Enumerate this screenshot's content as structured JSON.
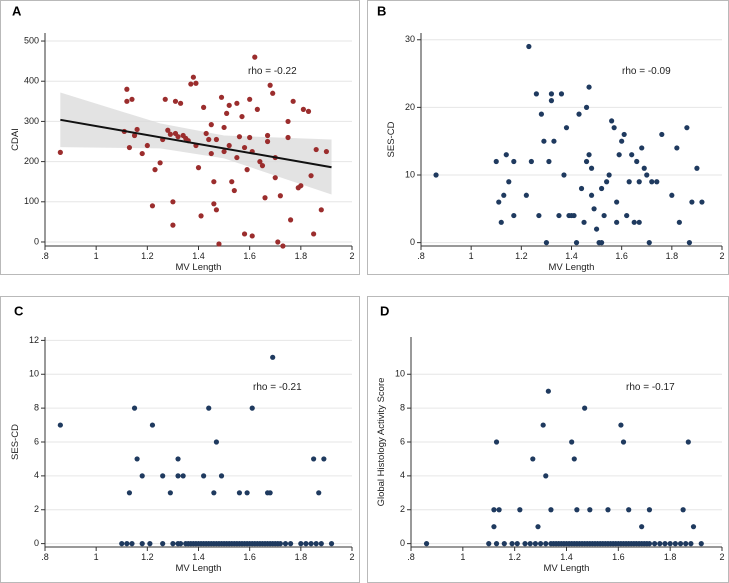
{
  "chart_data": [
    {
      "panel": "A",
      "type": "scatter",
      "xlabel": "MV Length",
      "ylabel": "CDAI",
      "xlim": [
        0.8,
        2.0
      ],
      "ylim": [
        -10,
        520
      ],
      "xticks": [
        ".8",
        "1",
        "1.2",
        "1.4",
        "1.6",
        "1.8",
        "2"
      ],
      "xtick_values": [
        0.8,
        1.0,
        1.2,
        1.4,
        1.6,
        1.8,
        2.0
      ],
      "yticks": [
        "0",
        "100",
        "200",
        "300",
        "400",
        "500"
      ],
      "ytick_values": [
        0,
        100,
        200,
        300,
        400,
        500
      ],
      "annotation": "rho = -0.22",
      "marker_color": "#9b2d2d",
      "fit_line": {
        "x": [
          0.86,
          1.92
        ],
        "y": [
          304,
          186
        ]
      },
      "confidence_band": {
        "x": [
          0.86,
          1.25,
          1.5,
          1.92
        ],
        "upper": [
          372,
          295,
          265,
          255
        ],
        "lower": [
          236,
          233,
          208,
          118
        ]
      },
      "points": [
        [
          0.86,
          223
        ],
        [
          1.11,
          275
        ],
        [
          1.12,
          380
        ],
        [
          1.12,
          350
        ],
        [
          1.13,
          235
        ],
        [
          1.14,
          355
        ],
        [
          1.15,
          265
        ],
        [
          1.16,
          280
        ],
        [
          1.18,
          220
        ],
        [
          1.2,
          240
        ],
        [
          1.22,
          90
        ],
        [
          1.23,
          180
        ],
        [
          1.25,
          197
        ],
        [
          1.26,
          255
        ],
        [
          1.27,
          355
        ],
        [
          1.28,
          278
        ],
        [
          1.29,
          268
        ],
        [
          1.3,
          42
        ],
        [
          1.3,
          100
        ],
        [
          1.31,
          350
        ],
        [
          1.31,
          270
        ],
        [
          1.32,
          262
        ],
        [
          1.33,
          345
        ],
        [
          1.34,
          265
        ],
        [
          1.35,
          258
        ],
        [
          1.36,
          252
        ],
        [
          1.37,
          393
        ],
        [
          1.38,
          410
        ],
        [
          1.39,
          395
        ],
        [
          1.39,
          240
        ],
        [
          1.4,
          185
        ],
        [
          1.41,
          65
        ],
        [
          1.42,
          335
        ],
        [
          1.43,
          270
        ],
        [
          1.44,
          255
        ],
        [
          1.45,
          292
        ],
        [
          1.45,
          220
        ],
        [
          1.46,
          150
        ],
        [
          1.46,
          95
        ],
        [
          1.47,
          80
        ],
        [
          1.47,
          255
        ],
        [
          1.48,
          -5
        ],
        [
          1.49,
          360
        ],
        [
          1.5,
          285
        ],
        [
          1.5,
          225
        ],
        [
          1.51,
          320
        ],
        [
          1.52,
          340
        ],
        [
          1.52,
          240
        ],
        [
          1.53,
          150
        ],
        [
          1.54,
          128
        ],
        [
          1.55,
          345
        ],
        [
          1.55,
          210
        ],
        [
          1.56,
          262
        ],
        [
          1.57,
          312
        ],
        [
          1.58,
          235
        ],
        [
          1.58,
          20
        ],
        [
          1.59,
          180
        ],
        [
          1.6,
          355
        ],
        [
          1.6,
          260
        ],
        [
          1.61,
          15
        ],
        [
          1.61,
          225
        ],
        [
          1.62,
          460
        ],
        [
          1.63,
          330
        ],
        [
          1.64,
          200
        ],
        [
          1.65,
          190
        ],
        [
          1.66,
          110
        ],
        [
          1.67,
          265
        ],
        [
          1.67,
          250
        ],
        [
          1.68,
          390
        ],
        [
          1.69,
          370
        ],
        [
          1.7,
          210
        ],
        [
          1.7,
          160
        ],
        [
          1.71,
          0
        ],
        [
          1.72,
          115
        ],
        [
          1.73,
          -10
        ],
        [
          1.75,
          300
        ],
        [
          1.75,
          260
        ],
        [
          1.76,
          55
        ],
        [
          1.77,
          350
        ],
        [
          1.79,
          135
        ],
        [
          1.8,
          140
        ],
        [
          1.81,
          330
        ],
        [
          1.83,
          325
        ],
        [
          1.84,
          165
        ],
        [
          1.85,
          20
        ],
        [
          1.86,
          230
        ],
        [
          1.88,
          80
        ],
        [
          1.9,
          225
        ]
      ]
    },
    {
      "panel": "B",
      "type": "scatter",
      "xlabel": "MV Length",
      "ylabel": "SES-CD",
      "xlim": [
        0.8,
        2.0
      ],
      "ylim": [
        -0.5,
        31
      ],
      "xticks": [
        ".8",
        "1",
        "1.2",
        "1.4",
        "1.6",
        "1.8",
        "2"
      ],
      "xtick_values": [
        0.8,
        1.0,
        1.2,
        1.4,
        1.6,
        1.8,
        2.0
      ],
      "yticks": [
        "0",
        "10",
        "20",
        "30"
      ],
      "ytick_values": [
        0,
        10,
        20,
        30
      ],
      "annotation": "rho = -0.09",
      "marker_color": "#1f3a5f",
      "points": [
        [
          0.86,
          10
        ],
        [
          1.1,
          12
        ],
        [
          1.11,
          6
        ],
        [
          1.12,
          3
        ],
        [
          1.13,
          7
        ],
        [
          1.14,
          13
        ],
        [
          1.15,
          9
        ],
        [
          1.17,
          12
        ],
        [
          1.17,
          4
        ],
        [
          1.22,
          7
        ],
        [
          1.23,
          29
        ],
        [
          1.24,
          12
        ],
        [
          1.26,
          22
        ],
        [
          1.27,
          4
        ],
        [
          1.28,
          19
        ],
        [
          1.29,
          15
        ],
        [
          1.3,
          0
        ],
        [
          1.31,
          12
        ],
        [
          1.32,
          21
        ],
        [
          1.32,
          22
        ],
        [
          1.33,
          15
        ],
        [
          1.35,
          4
        ],
        [
          1.36,
          22
        ],
        [
          1.37,
          10
        ],
        [
          1.38,
          17
        ],
        [
          1.39,
          4
        ],
        [
          1.4,
          4
        ],
        [
          1.41,
          4
        ],
        [
          1.42,
          0
        ],
        [
          1.43,
          19
        ],
        [
          1.44,
          8
        ],
        [
          1.45,
          3
        ],
        [
          1.46,
          12
        ],
        [
          1.46,
          20
        ],
        [
          1.47,
          23
        ],
        [
          1.47,
          13
        ],
        [
          1.48,
          11
        ],
        [
          1.48,
          7
        ],
        [
          1.49,
          5
        ],
        [
          1.5,
          2
        ],
        [
          1.51,
          0
        ],
        [
          1.52,
          0
        ],
        [
          1.52,
          8
        ],
        [
          1.53,
          4
        ],
        [
          1.54,
          9
        ],
        [
          1.55,
          10
        ],
        [
          1.56,
          18
        ],
        [
          1.57,
          17
        ],
        [
          1.58,
          3
        ],
        [
          1.58,
          6
        ],
        [
          1.59,
          13
        ],
        [
          1.6,
          15
        ],
        [
          1.61,
          16
        ],
        [
          1.62,
          4
        ],
        [
          1.63,
          9
        ],
        [
          1.64,
          13
        ],
        [
          1.65,
          3
        ],
        [
          1.66,
          12
        ],
        [
          1.67,
          9
        ],
        [
          1.67,
          3
        ],
        [
          1.68,
          14
        ],
        [
          1.69,
          11
        ],
        [
          1.7,
          10
        ],
        [
          1.71,
          0
        ],
        [
          1.72,
          9
        ],
        [
          1.74,
          9
        ],
        [
          1.76,
          16
        ],
        [
          1.8,
          7
        ],
        [
          1.82,
          14
        ],
        [
          1.83,
          3
        ],
        [
          1.86,
          17
        ],
        [
          1.87,
          0
        ],
        [
          1.88,
          6
        ],
        [
          1.9,
          11
        ],
        [
          1.92,
          6
        ]
      ]
    },
    {
      "panel": "C",
      "type": "scatter",
      "xlabel": "MV Length",
      "ylabel": "SES-CD",
      "xlim": [
        0.8,
        2.0
      ],
      "ylim": [
        -0.2,
        12.2
      ],
      "xticks": [
        ".8",
        "1",
        "1.2",
        "1.4",
        "1.6",
        "1.8",
        "2"
      ],
      "xtick_values": [
        0.8,
        1.0,
        1.2,
        1.4,
        1.6,
        1.8,
        2.0
      ],
      "yticks": [
        "0",
        "2",
        "4",
        "6",
        "8",
        "10",
        "12"
      ],
      "ytick_values": [
        0,
        2,
        4,
        6,
        8,
        10,
        12
      ],
      "annotation": "rho = -0.21",
      "marker_color": "#1f3a5f",
      "points": [
        [
          0.86,
          7
        ],
        [
          1.13,
          3
        ],
        [
          1.15,
          8
        ],
        [
          1.16,
          5
        ],
        [
          1.18,
          4
        ],
        [
          1.22,
          7
        ],
        [
          1.26,
          4
        ],
        [
          1.29,
          3
        ],
        [
          1.32,
          5
        ],
        [
          1.32,
          4
        ],
        [
          1.34,
          4
        ],
        [
          1.42,
          4
        ],
        [
          1.44,
          8
        ],
        [
          1.46,
          3
        ],
        [
          1.47,
          6
        ],
        [
          1.49,
          4
        ],
        [
          1.56,
          3
        ],
        [
          1.59,
          3
        ],
        [
          1.61,
          8
        ],
        [
          1.67,
          3
        ],
        [
          1.68,
          3
        ],
        [
          1.69,
          11
        ],
        [
          1.85,
          5
        ],
        [
          1.87,
          3
        ],
        [
          1.89,
          5
        ],
        [
          1.1,
          0
        ],
        [
          1.12,
          0
        ],
        [
          1.14,
          0
        ],
        [
          1.18,
          0
        ],
        [
          1.21,
          0
        ],
        [
          1.26,
          0
        ],
        [
          1.3,
          0
        ],
        [
          1.32,
          0
        ],
        [
          1.33,
          0
        ],
        [
          1.35,
          0
        ],
        [
          1.36,
          0
        ],
        [
          1.37,
          0
        ],
        [
          1.38,
          0
        ],
        [
          1.39,
          0
        ],
        [
          1.4,
          0
        ],
        [
          1.41,
          0
        ],
        [
          1.42,
          0
        ],
        [
          1.43,
          0
        ],
        [
          1.44,
          0
        ],
        [
          1.45,
          0
        ],
        [
          1.46,
          0
        ],
        [
          1.47,
          0
        ],
        [
          1.48,
          0
        ],
        [
          1.49,
          0
        ],
        [
          1.5,
          0
        ],
        [
          1.51,
          0
        ],
        [
          1.52,
          0
        ],
        [
          1.53,
          0
        ],
        [
          1.54,
          0
        ],
        [
          1.55,
          0
        ],
        [
          1.56,
          0
        ],
        [
          1.57,
          0
        ],
        [
          1.58,
          0
        ],
        [
          1.59,
          0
        ],
        [
          1.6,
          0
        ],
        [
          1.61,
          0
        ],
        [
          1.62,
          0
        ],
        [
          1.63,
          0
        ],
        [
          1.64,
          0
        ],
        [
          1.65,
          0
        ],
        [
          1.66,
          0
        ],
        [
          1.67,
          0
        ],
        [
          1.68,
          0
        ],
        [
          1.69,
          0
        ],
        [
          1.7,
          0
        ],
        [
          1.71,
          0
        ],
        [
          1.72,
          0
        ],
        [
          1.74,
          0
        ],
        [
          1.76,
          0
        ],
        [
          1.8,
          0
        ],
        [
          1.82,
          0
        ],
        [
          1.84,
          0
        ],
        [
          1.86,
          0
        ],
        [
          1.88,
          0
        ],
        [
          1.92,
          0
        ]
      ]
    },
    {
      "panel": "D",
      "type": "scatter",
      "xlabel": "MV Length",
      "ylabel": "Global Histology Activity Score",
      "xlim": [
        0.8,
        2.0
      ],
      "ylim": [
        -0.2,
        12.2
      ],
      "xticks": [
        ".8",
        "1",
        "1.2",
        "1.4",
        "1.6",
        "1.8",
        "2"
      ],
      "xtick_values": [
        0.8,
        1.0,
        1.2,
        1.4,
        1.6,
        1.8,
        2.0
      ],
      "yticks": [
        "0",
        "2",
        "4",
        "6",
        "8",
        "10"
      ],
      "ytick_values": [
        0,
        2,
        4,
        6,
        8,
        10
      ],
      "annotation": "rho = -0.17",
      "marker_color": "#1f3a5f",
      "points": [
        [
          0.86,
          0
        ],
        [
          1.12,
          1
        ],
        [
          1.12,
          2
        ],
        [
          1.13,
          6
        ],
        [
          1.14,
          2
        ],
        [
          1.22,
          2
        ],
        [
          1.27,
          5
        ],
        [
          1.29,
          1
        ],
        [
          1.31,
          7
        ],
        [
          1.32,
          4
        ],
        [
          1.33,
          9
        ],
        [
          1.34,
          2
        ],
        [
          1.42,
          6
        ],
        [
          1.43,
          5
        ],
        [
          1.44,
          2
        ],
        [
          1.47,
          8
        ],
        [
          1.49,
          2
        ],
        [
          1.56,
          2
        ],
        [
          1.61,
          7
        ],
        [
          1.62,
          6
        ],
        [
          1.64,
          2
        ],
        [
          1.69,
          1
        ],
        [
          1.72,
          2
        ],
        [
          1.85,
          2
        ],
        [
          1.87,
          6
        ],
        [
          1.89,
          1
        ],
        [
          1.1,
          0
        ],
        [
          1.13,
          0
        ],
        [
          1.16,
          0
        ],
        [
          1.19,
          0
        ],
        [
          1.21,
          0
        ],
        [
          1.24,
          0
        ],
        [
          1.26,
          0
        ],
        [
          1.28,
          0
        ],
        [
          1.3,
          0
        ],
        [
          1.32,
          0
        ],
        [
          1.34,
          0
        ],
        [
          1.35,
          0
        ],
        [
          1.36,
          0
        ],
        [
          1.37,
          0
        ],
        [
          1.38,
          0
        ],
        [
          1.39,
          0
        ],
        [
          1.4,
          0
        ],
        [
          1.41,
          0
        ],
        [
          1.42,
          0
        ],
        [
          1.43,
          0
        ],
        [
          1.44,
          0
        ],
        [
          1.45,
          0
        ],
        [
          1.46,
          0
        ],
        [
          1.47,
          0
        ],
        [
          1.48,
          0
        ],
        [
          1.49,
          0
        ],
        [
          1.5,
          0
        ],
        [
          1.51,
          0
        ],
        [
          1.52,
          0
        ],
        [
          1.53,
          0
        ],
        [
          1.54,
          0
        ],
        [
          1.55,
          0
        ],
        [
          1.56,
          0
        ],
        [
          1.57,
          0
        ],
        [
          1.58,
          0
        ],
        [
          1.59,
          0
        ],
        [
          1.6,
          0
        ],
        [
          1.61,
          0
        ],
        [
          1.62,
          0
        ],
        [
          1.63,
          0
        ],
        [
          1.64,
          0
        ],
        [
          1.65,
          0
        ],
        [
          1.66,
          0
        ],
        [
          1.67,
          0
        ],
        [
          1.68,
          0
        ],
        [
          1.69,
          0
        ],
        [
          1.7,
          0
        ],
        [
          1.71,
          0
        ],
        [
          1.72,
          0
        ],
        [
          1.74,
          0
        ],
        [
          1.76,
          0
        ],
        [
          1.78,
          0
        ],
        [
          1.8,
          0
        ],
        [
          1.82,
          0
        ],
        [
          1.84,
          0
        ],
        [
          1.86,
          0
        ],
        [
          1.88,
          0
        ],
        [
          1.92,
          0
        ]
      ]
    }
  ]
}
